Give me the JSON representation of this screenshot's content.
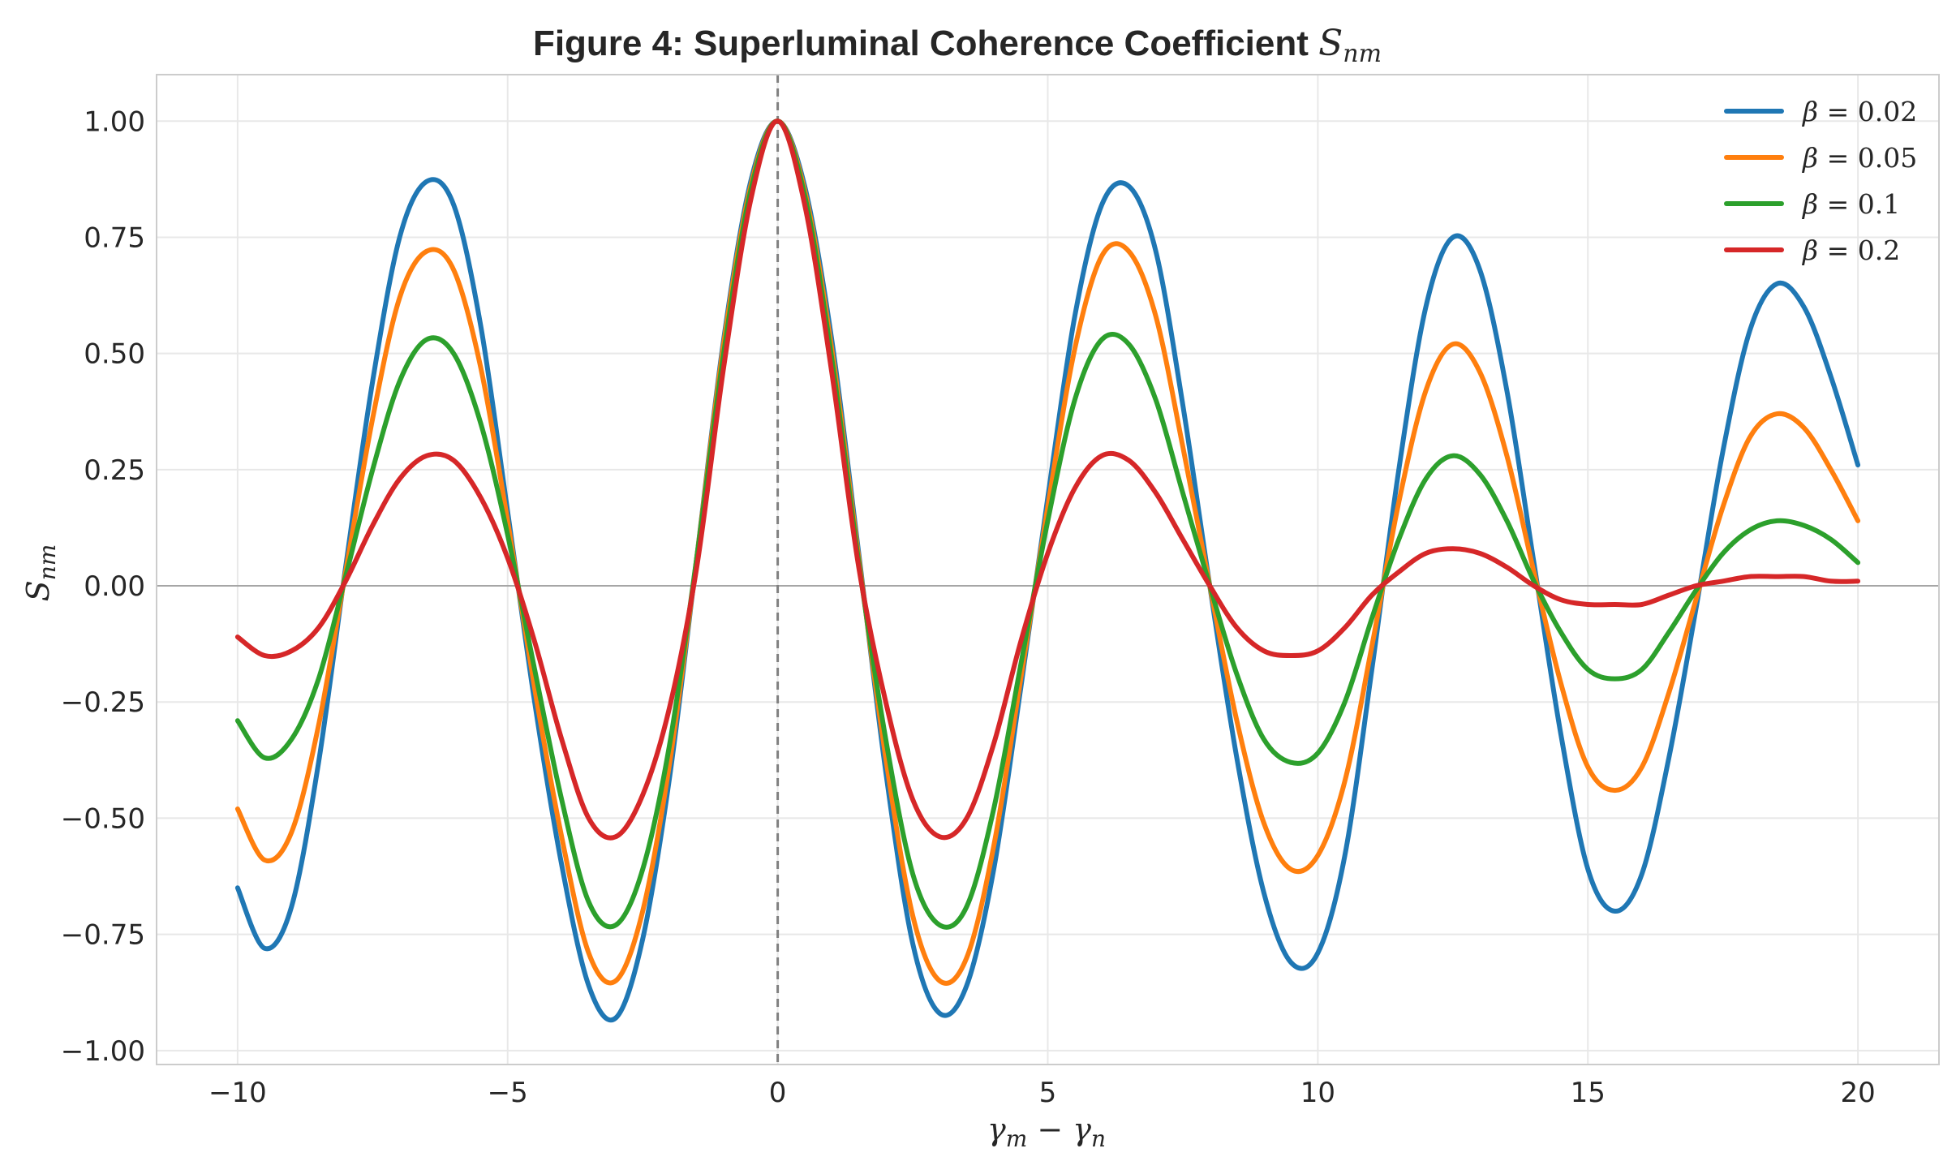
{
  "chart_data": {
    "type": "line",
    "title": "Figure 4: Superluminal Coherence Coefficient",
    "title_symbol": "S",
    "title_symbol_sub": "nm",
    "xlabel": "γm − γn",
    "xlabel_parts": {
      "a": "γ",
      "a_sub": "m",
      "op": " − ",
      "b": "γ",
      "b_sub": "n"
    },
    "ylabel": "Snm",
    "ylabel_parts": {
      "sym": "S",
      "sub": "nm"
    },
    "xlim": [
      -11.5,
      21.5
    ],
    "ylim": [
      -1.03,
      1.1
    ],
    "xticks": [
      -10,
      -5,
      0,
      5,
      10,
      15,
      20
    ],
    "xtick_labels": [
      "−10",
      "−5",
      "0",
      "5",
      "10",
      "15",
      "20"
    ],
    "yticks": [
      1.0,
      0.75,
      0.5,
      0.25,
      0.0,
      -0.25,
      -0.5,
      -0.75,
      -1.0
    ],
    "ytick_labels": [
      "1.00",
      "0.75",
      "0.50",
      "0.25",
      "0.00",
      "−0.25",
      "−0.50",
      "−0.75",
      "−1.00"
    ],
    "grid": true,
    "legend_position": "top-right",
    "reference_lines": {
      "vertical_dashed_x": 0,
      "horizontal_y": 0
    },
    "x_range": [
      -10,
      20
    ],
    "series": [
      {
        "name": "β = 0.02",
        "name_parts": {
          "sym": "β",
          "val": " = 0.02"
        },
        "color": "#1f77b4",
        "x": [
          -10,
          -9.5,
          -9,
          -8.5,
          -8,
          -7.5,
          -7,
          -6.5,
          -6,
          -5.5,
          -5,
          -4.5,
          -4,
          -3.5,
          -3,
          -2.5,
          -2,
          -1.5,
          -1,
          -0.5,
          0,
          0.5,
          1,
          1.5,
          2,
          2.5,
          3,
          3.5,
          4,
          4.5,
          5,
          5.5,
          6,
          6.5,
          7,
          7.5,
          8,
          8.5,
          9,
          9.5,
          10,
          10.5,
          11,
          11.5,
          12,
          12.5,
          13,
          13.5,
          14,
          14.5,
          15,
          15.5,
          16,
          16.5,
          17,
          17.5,
          18,
          18.5,
          19,
          19.5,
          20
        ],
        "y": [
          -0.65,
          -0.78,
          -0.69,
          -0.38,
          0.04,
          0.44,
          0.75,
          0.87,
          0.82,
          0.56,
          0.16,
          -0.25,
          -0.6,
          -0.86,
          -0.93,
          -0.76,
          -0.41,
          0.06,
          0.53,
          0.87,
          1.0,
          0.86,
          0.53,
          0.07,
          -0.4,
          -0.77,
          -0.92,
          -0.86,
          -0.61,
          -0.22,
          0.19,
          0.58,
          0.82,
          0.86,
          0.72,
          0.39,
          0.0,
          -0.37,
          -0.66,
          -0.81,
          -0.79,
          -0.58,
          -0.18,
          0.25,
          0.6,
          0.75,
          0.68,
          0.42,
          0.05,
          -0.32,
          -0.61,
          -0.7,
          -0.62,
          -0.37,
          -0.05,
          0.29,
          0.55,
          0.65,
          0.6,
          0.45,
          0.26
        ]
      },
      {
        "name": "β = 0.05",
        "name_parts": {
          "sym": "β",
          "val": " = 0.05"
        },
        "color": "#ff7f0e",
        "x": [
          -10,
          -9.5,
          -9,
          -8.5,
          -8,
          -7.5,
          -7,
          -6.5,
          -6,
          -5.5,
          -5,
          -4.5,
          -4,
          -3.5,
          -3,
          -2.5,
          -2,
          -1.5,
          -1,
          -0.5,
          0,
          0.5,
          1,
          1.5,
          2,
          2.5,
          3,
          3.5,
          4,
          4.5,
          5,
          5.5,
          6,
          6.5,
          7,
          7.5,
          8,
          8.5,
          9,
          9.5,
          10,
          10.5,
          11,
          11.5,
          12,
          12.5,
          13,
          13.5,
          14,
          14.5,
          15,
          15.5,
          16,
          16.5,
          17,
          17.5,
          18,
          18.5,
          19,
          19.5,
          20
        ],
        "y": [
          -0.48,
          -0.59,
          -0.53,
          -0.3,
          0.03,
          0.36,
          0.62,
          0.72,
          0.68,
          0.47,
          0.14,
          -0.22,
          -0.54,
          -0.79,
          -0.85,
          -0.7,
          -0.38,
          0.06,
          0.52,
          0.86,
          1.0,
          0.85,
          0.51,
          0.06,
          -0.37,
          -0.71,
          -0.85,
          -0.8,
          -0.56,
          -0.2,
          0.17,
          0.51,
          0.71,
          0.72,
          0.58,
          0.3,
          0.0,
          -0.29,
          -0.51,
          -0.61,
          -0.58,
          -0.42,
          -0.13,
          0.18,
          0.42,
          0.52,
          0.46,
          0.28,
          0.03,
          -0.21,
          -0.39,
          -0.44,
          -0.39,
          -0.23,
          -0.03,
          0.17,
          0.32,
          0.37,
          0.34,
          0.25,
          0.14
        ]
      },
      {
        "name": "β = 0.1",
        "name_parts": {
          "sym": "β",
          "val": " = 0.1"
        },
        "color": "#2ca02c",
        "x": [
          -10,
          -9.5,
          -9,
          -8.5,
          -8,
          -7.5,
          -7,
          -6.5,
          -6,
          -5.5,
          -5,
          -4.5,
          -4,
          -3.5,
          -3,
          -2.5,
          -2,
          -1.5,
          -1,
          -0.5,
          0,
          0.5,
          1,
          1.5,
          2,
          2.5,
          3,
          3.5,
          4,
          4.5,
          5,
          5.5,
          6,
          6.5,
          7,
          7.5,
          8,
          8.5,
          9,
          9.5,
          10,
          10.5,
          11,
          11.5,
          12,
          12.5,
          13,
          13.5,
          14,
          14.5,
          15,
          15.5,
          16,
          16.5,
          17,
          17.5,
          18,
          18.5,
          19,
          19.5,
          20
        ],
        "y": [
          -0.29,
          -0.37,
          -0.33,
          -0.2,
          0.02,
          0.25,
          0.44,
          0.53,
          0.5,
          0.35,
          0.11,
          -0.18,
          -0.46,
          -0.68,
          -0.73,
          -0.61,
          -0.34,
          0.06,
          0.5,
          0.85,
          1.0,
          0.84,
          0.49,
          0.05,
          -0.33,
          -0.62,
          -0.73,
          -0.69,
          -0.48,
          -0.17,
          0.14,
          0.4,
          0.53,
          0.52,
          0.4,
          0.2,
          0.0,
          -0.19,
          -0.33,
          -0.38,
          -0.36,
          -0.25,
          -0.07,
          0.1,
          0.23,
          0.28,
          0.24,
          0.14,
          0.01,
          -0.1,
          -0.18,
          -0.2,
          -0.18,
          -0.1,
          -0.01,
          0.07,
          0.12,
          0.14,
          0.13,
          0.1,
          0.05
        ]
      },
      {
        "name": "β = 0.2",
        "name_parts": {
          "sym": "β",
          "val": " = 0.2"
        },
        "color": "#d62728",
        "x": [
          -10,
          -9.5,
          -9,
          -8.5,
          -8,
          -7.5,
          -7,
          -6.5,
          -6,
          -5.5,
          -5,
          -4.5,
          -4,
          -3.5,
          -3,
          -2.5,
          -2,
          -1.5,
          -1,
          -0.5,
          0,
          0.5,
          1,
          1.5,
          2,
          2.5,
          3,
          3.5,
          4,
          4.5,
          5,
          5.5,
          6,
          6.5,
          7,
          7.5,
          8,
          8.5,
          9,
          9.5,
          10,
          10.5,
          11,
          11.5,
          12,
          12.5,
          13,
          13.5,
          14,
          14.5,
          15,
          15.5,
          16,
          16.5,
          17,
          17.5,
          18,
          18.5,
          19,
          19.5,
          20
        ],
        "y": [
          -0.11,
          -0.15,
          -0.14,
          -0.09,
          0.01,
          0.13,
          0.23,
          0.28,
          0.27,
          0.19,
          0.06,
          -0.12,
          -0.33,
          -0.5,
          -0.54,
          -0.45,
          -0.26,
          0.04,
          0.47,
          0.83,
          1.0,
          0.82,
          0.46,
          0.04,
          -0.25,
          -0.46,
          -0.54,
          -0.5,
          -0.34,
          -0.12,
          0.07,
          0.21,
          0.28,
          0.27,
          0.2,
          0.1,
          0.0,
          -0.09,
          -0.14,
          -0.15,
          -0.14,
          -0.09,
          -0.02,
          0.03,
          0.07,
          0.08,
          0.07,
          0.04,
          0.0,
          -0.03,
          -0.04,
          -0.04,
          -0.04,
          -0.02,
          0.0,
          0.01,
          0.02,
          0.02,
          0.02,
          0.01,
          0.01
        ]
      }
    ]
  }
}
